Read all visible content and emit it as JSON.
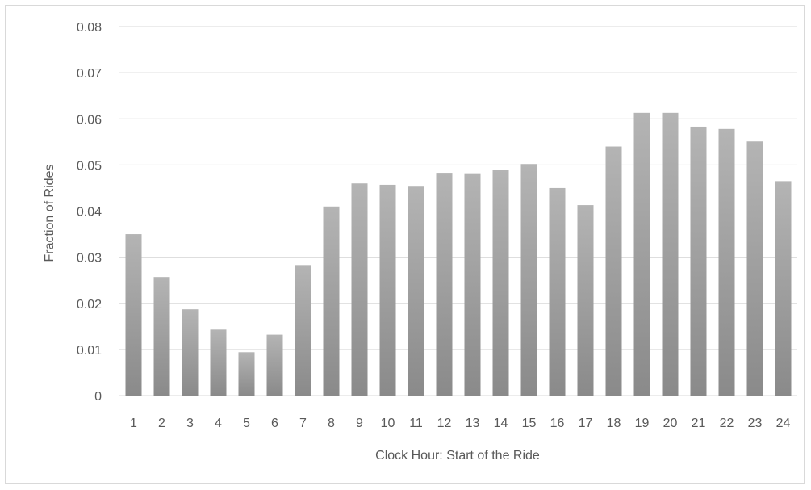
{
  "chart_data": {
    "type": "bar",
    "title": "",
    "xlabel": "Clock Hour: Start of the Ride",
    "ylabel": "Fraction of Rides",
    "categories": [
      "1",
      "2",
      "3",
      "4",
      "5",
      "6",
      "7",
      "8",
      "9",
      "10",
      "11",
      "12",
      "13",
      "14",
      "15",
      "16",
      "17",
      "18",
      "19",
      "20",
      "21",
      "22",
      "23",
      "24"
    ],
    "values": [
      0.035,
      0.0257,
      0.0187,
      0.0143,
      0.0094,
      0.0132,
      0.0283,
      0.041,
      0.046,
      0.0457,
      0.0453,
      0.0483,
      0.0482,
      0.049,
      0.0502,
      0.045,
      0.0413,
      0.054,
      0.0613,
      0.0613,
      0.0583,
      0.0578,
      0.0551,
      0.0465
    ],
    "ylim": [
      0,
      0.08
    ],
    "yticks": [
      "0",
      "0.01",
      "0.02",
      "0.03",
      "0.04",
      "0.05",
      "0.06",
      "0.07",
      "0.08"
    ],
    "ytick_values": [
      0,
      0.01,
      0.02,
      0.03,
      0.04,
      0.05,
      0.06,
      0.07,
      0.08
    ],
    "grid": true,
    "legend": "none",
    "colors": {
      "bar_top": "#b4b4b4",
      "bar_bottom": "#8a8a8a",
      "grid": "#d9d9d9",
      "text": "#595959"
    }
  }
}
